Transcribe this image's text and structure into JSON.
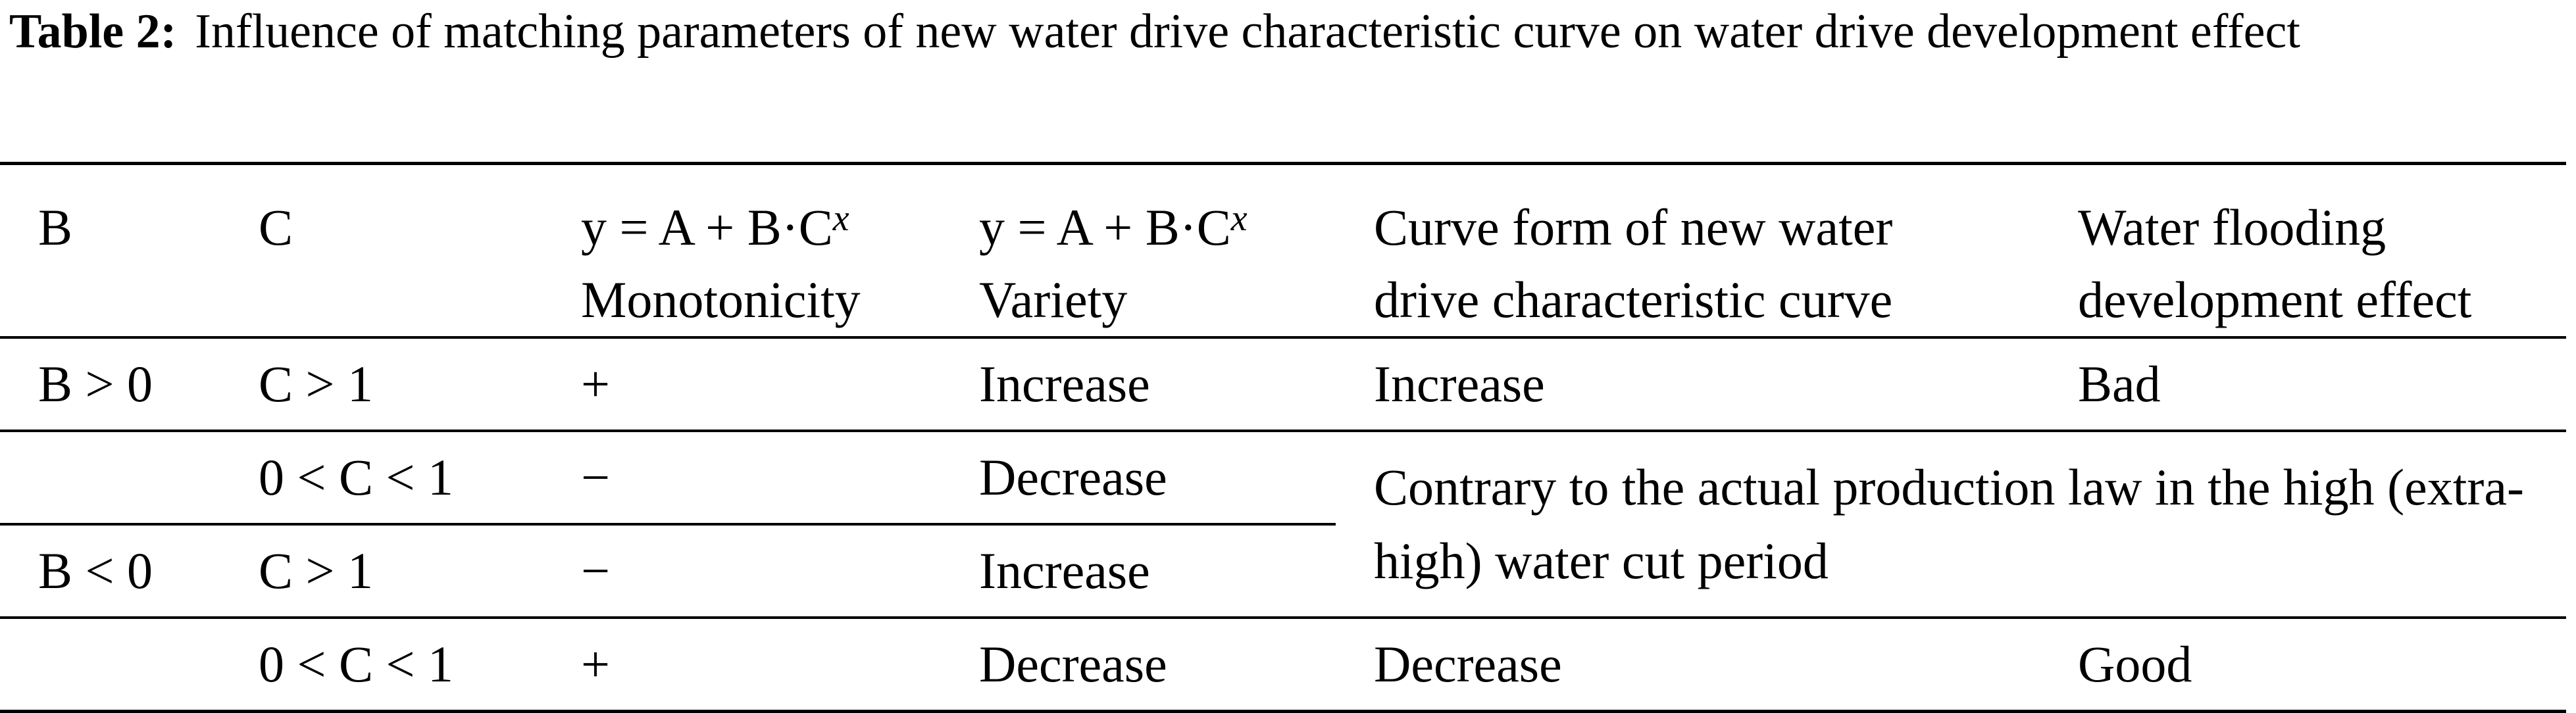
{
  "caption": {
    "label": "Table 2:",
    "text": "Influence of matching parameters of new water drive characteristic curve on water drive development effect"
  },
  "table": {
    "headers": {
      "b": "B",
      "c": "C",
      "monotonicity_formula": "y = A + B·C",
      "monotonicity_exp": "x",
      "monotonicity_label": "Monotonicity",
      "variety_formula": "y = A + B·C",
      "variety_exp": "x",
      "variety_label": "Variety",
      "curve_form_line1": "Curve form of new water",
      "curve_form_line2": "drive characteristic curve",
      "effect_line1": "Water flooding",
      "effect_line2": "development effect"
    },
    "rows": [
      {
        "b": "B > 0",
        "c": "C > 1",
        "monotonicity": "+",
        "variety": "Increase",
        "curve_form": "Increase",
        "effect": "Bad"
      },
      {
        "b": "",
        "c": "0 < C < 1",
        "monotonicity": "−",
        "variety": "Decrease",
        "merged_note": "Contrary to the actual production law in the high (extra-high) water cut period"
      },
      {
        "b": "B < 0",
        "c": "C > 1",
        "monotonicity": "−",
        "variety": "Increase"
      },
      {
        "b": "",
        "c": "0 < C < 1",
        "monotonicity": "+",
        "variety": "Decrease",
        "curve_form": "Decrease",
        "effect": "Good"
      }
    ]
  }
}
